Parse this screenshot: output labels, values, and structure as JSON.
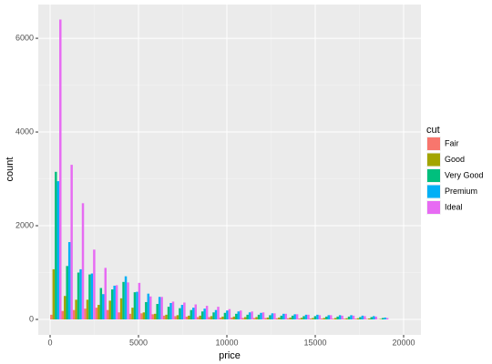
{
  "chart_data": {
    "type": "histogram",
    "x_label": "price",
    "y_label": "count",
    "legend_title": "cut",
    "legend_position": "right",
    "grid": true,
    "bins": [
      7,
      645,
      1283,
      1921,
      2558,
      3196,
      3834,
      4472,
      5110,
      5748,
      6385,
      7023,
      7661,
      8299,
      8937,
      9575,
      10212,
      10850,
      11488,
      12126,
      12764,
      13402,
      14039,
      14677,
      15315,
      15953,
      16591,
      17229,
      17866,
      18504,
      19142
    ],
    "series": [
      {
        "name": "Fair",
        "color": "#F8766D",
        "values": [
          100,
          180,
          200,
          230,
          250,
          200,
          150,
          120,
          130,
          110,
          80,
          70,
          60,
          50,
          50,
          40,
          40,
          30,
          30,
          30,
          25,
          25,
          20,
          20,
          20,
          15,
          15,
          15,
          10,
          5
        ]
      },
      {
        "name": "Good",
        "color": "#A3A500",
        "values": [
          1070,
          500,
          420,
          420,
          310,
          400,
          450,
          250,
          150,
          120,
          100,
          90,
          80,
          80,
          70,
          60,
          60,
          50,
          50,
          40,
          40,
          40,
          35,
          30,
          30,
          30,
          25,
          25,
          20,
          10
        ]
      },
      {
        "name": "Very Good",
        "color": "#00BF7D",
        "values": [
          3150,
          1140,
          1000,
          960,
          670,
          640,
          800,
          580,
          370,
          330,
          270,
          240,
          200,
          170,
          150,
          140,
          120,
          100,
          100,
          90,
          80,
          80,
          70,
          70,
          60,
          60,
          60,
          50,
          50,
          30
        ]
      },
      {
        "name": "Premium",
        "color": "#00B0F6",
        "values": [
          2950,
          1650,
          1070,
          980,
          540,
          720,
          920,
          590,
          550,
          480,
          350,
          310,
          250,
          230,
          200,
          190,
          170,
          150,
          140,
          130,
          120,
          110,
          100,
          100,
          90,
          90,
          90,
          80,
          70,
          40
        ]
      },
      {
        "name": "Ideal",
        "color": "#E76BF3",
        "values": [
          6400,
          3300,
          2480,
          1490,
          1100,
          730,
          790,
          780,
          490,
          480,
          380,
          360,
          320,
          290,
          270,
          220,
          190,
          170,
          150,
          130,
          120,
          110,
          100,
          90,
          90,
          80,
          80,
          70,
          60,
          30
        ]
      }
    ],
    "xlim": [
      -670,
      20980
    ],
    "xticks": [
      0,
      5000,
      10000,
      15000,
      20000
    ],
    "ylim": [
      -330,
      6720
    ],
    "yticks": [
      0,
      2000,
      4000,
      6000
    ]
  }
}
